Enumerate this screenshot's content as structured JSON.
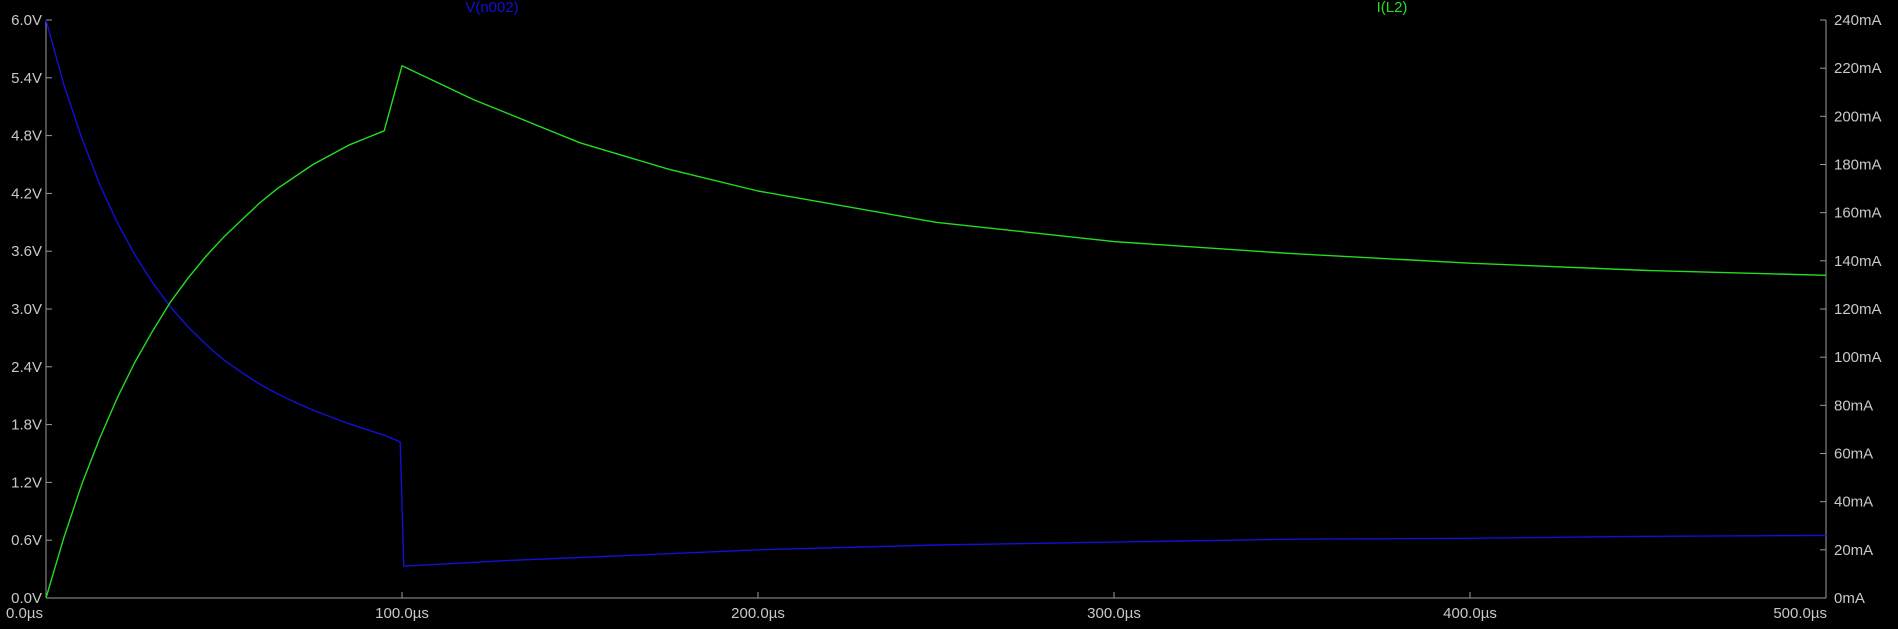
{
  "chart_data": {
    "type": "line",
    "background": "#000000",
    "grid": false,
    "traces": [
      {
        "name": "V(n002)",
        "color": "#1010d8",
        "axis": "left",
        "x": [
          0,
          5,
          10,
          15,
          20,
          25,
          30,
          35,
          40,
          45,
          50,
          55,
          60,
          65,
          70,
          75,
          80,
          85,
          90,
          95,
          99.5,
          100.5,
          110,
          120,
          130,
          150,
          175,
          200,
          250,
          300,
          350,
          400,
          450,
          500
        ],
        "y": [
          6.0,
          5.33,
          4.78,
          4.3,
          3.9,
          3.56,
          3.27,
          3.02,
          2.81,
          2.63,
          2.47,
          2.34,
          2.22,
          2.12,
          2.03,
          1.95,
          1.88,
          1.81,
          1.75,
          1.69,
          1.62,
          0.33,
          0.35,
          0.37,
          0.39,
          0.42,
          0.46,
          0.5,
          0.55,
          0.58,
          0.61,
          0.62,
          0.64,
          0.65
        ]
      },
      {
        "name": "I(L2)",
        "color": "#22dd22",
        "axis": "right",
        "x": [
          0,
          5,
          10,
          15,
          20,
          25,
          30,
          35,
          40,
          45,
          50,
          55,
          60,
          65,
          70,
          75,
          80,
          85,
          90,
          95,
          100,
          110,
          120,
          130,
          140,
          150,
          175,
          200,
          250,
          300,
          350,
          400,
          450,
          500
        ],
        "y": [
          0,
          25,
          47,
          66,
          83,
          98,
          111,
          123,
          133,
          142,
          150,
          157,
          164,
          170,
          175,
          180,
          184,
          188,
          191,
          194,
          221,
          214,
          207,
          201,
          195,
          189,
          178,
          169,
          156,
          148,
          143,
          139,
          136,
          134
        ]
      }
    ],
    "x_axis": {
      "range": [
        0,
        500
      ],
      "ticks": [
        0,
        100,
        200,
        300,
        400,
        500
      ],
      "tick_labels": [
        "0.0µs",
        "100.0µs",
        "200.0µs",
        "300.0µs",
        "400.0µs",
        "500.0µs"
      ]
    },
    "y_left": {
      "range": [
        0,
        6.0
      ],
      "ticks": [
        0,
        0.6,
        1.2,
        1.8,
        2.4,
        3.0,
        3.6,
        4.2,
        4.8,
        5.4,
        6.0
      ],
      "tick_labels": [
        "0.0V",
        "0.6V",
        "1.2V",
        "1.8V",
        "2.4V",
        "3.0V",
        "3.6V",
        "4.2V",
        "4.8V",
        "5.4V",
        "6.0V"
      ]
    },
    "y_right": {
      "range": [
        0,
        240
      ],
      "ticks": [
        0,
        20,
        40,
        60,
        80,
        100,
        120,
        140,
        160,
        180,
        200,
        220,
        240
      ],
      "tick_labels": [
        "0mA",
        "20mA",
        "40mA",
        "60mA",
        "80mA",
        "100mA",
        "120mA",
        "140mA",
        "160mA",
        "180mA",
        "200mA",
        "220mA",
        "240mA"
      ]
    },
    "axis_color": "#9a9a9a",
    "tick_color": "#c8c8c8"
  }
}
